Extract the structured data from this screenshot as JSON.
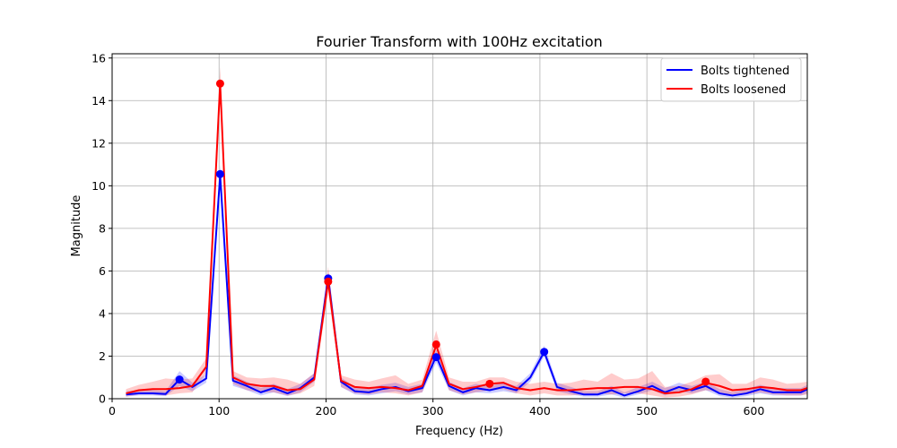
{
  "chart_data": {
    "type": "line",
    "title": "Fourier Transform with 100Hz excitation",
    "xlabel": "Frequency (Hz)",
    "ylabel": "Magnitude",
    "xlim": [
      0,
      650
    ],
    "ylim": [
      0,
      16.2
    ],
    "xticks": [
      0,
      100,
      200,
      300,
      400,
      500,
      600
    ],
    "yticks": [
      0,
      2,
      4,
      6,
      8,
      10,
      12,
      14,
      16
    ],
    "grid": true,
    "legend_position": "top-right",
    "x": [
      13,
      25,
      38,
      50,
      63,
      75,
      88,
      101,
      113,
      126,
      139,
      151,
      164,
      176,
      189,
      202,
      214,
      227,
      240,
      252,
      265,
      277,
      290,
      303,
      315,
      328,
      340,
      353,
      366,
      378,
      391,
      404,
      416,
      429,
      441,
      454,
      467,
      479,
      492,
      505,
      517,
      530,
      542,
      555,
      568,
      580,
      593,
      606,
      618,
      631,
      644,
      650
    ],
    "series": [
      {
        "name": "Bolts tightened",
        "color": "#0000ff",
        "values": [
          0.2,
          0.25,
          0.25,
          0.22,
          0.9,
          0.55,
          0.95,
          10.5,
          0.85,
          0.6,
          0.3,
          0.5,
          0.25,
          0.5,
          1.0,
          5.7,
          0.8,
          0.35,
          0.3,
          0.45,
          0.55,
          0.35,
          0.5,
          2.0,
          0.6,
          0.3,
          0.5,
          0.4,
          0.55,
          0.4,
          1.0,
          2.2,
          0.55,
          0.35,
          0.2,
          0.2,
          0.4,
          0.15,
          0.35,
          0.6,
          0.3,
          0.55,
          0.4,
          0.6,
          0.25,
          0.15,
          0.25,
          0.45,
          0.3,
          0.3,
          0.3,
          0.45
        ],
        "lower": [
          0.1,
          0.15,
          0.15,
          0.12,
          0.6,
          0.35,
          0.75,
          10.0,
          0.6,
          0.4,
          0.15,
          0.3,
          0.12,
          0.3,
          0.8,
          5.3,
          0.55,
          0.2,
          0.15,
          0.25,
          0.35,
          0.2,
          0.3,
          1.7,
          0.4,
          0.15,
          0.3,
          0.25,
          0.35,
          0.25,
          0.8,
          2.0,
          0.35,
          0.2,
          0.1,
          0.1,
          0.2,
          0.05,
          0.2,
          0.4,
          0.15,
          0.35,
          0.25,
          0.4,
          0.12,
          0.05,
          0.12,
          0.25,
          0.15,
          0.15,
          0.15,
          0.25
        ],
        "upper": [
          0.35,
          0.4,
          0.4,
          0.35,
          1.3,
          0.75,
          1.15,
          11.0,
          1.1,
          0.8,
          0.5,
          0.7,
          0.45,
          0.7,
          1.2,
          6.0,
          1.0,
          0.55,
          0.5,
          0.65,
          0.75,
          0.55,
          0.7,
          2.3,
          0.8,
          0.5,
          0.7,
          0.6,
          0.75,
          0.6,
          1.2,
          2.5,
          0.75,
          0.55,
          0.35,
          0.35,
          0.6,
          0.3,
          0.55,
          0.8,
          0.5,
          0.75,
          0.6,
          0.8,
          0.45,
          0.3,
          0.45,
          0.65,
          0.5,
          0.5,
          0.5,
          0.65
        ],
        "markers": [
          [
            63,
            0.9
          ],
          [
            101,
            10.55
          ],
          [
            202,
            5.65
          ],
          [
            303,
            1.95
          ],
          [
            404,
            2.2
          ]
        ]
      },
      {
        "name": "Bolts loosened",
        "color": "#ff0000",
        "values": [
          0.25,
          0.4,
          0.45,
          0.45,
          0.5,
          0.6,
          1.5,
          14.8,
          1.0,
          0.7,
          0.6,
          0.6,
          0.4,
          0.45,
          0.9,
          5.5,
          0.85,
          0.55,
          0.5,
          0.55,
          0.5,
          0.4,
          0.6,
          2.5,
          0.7,
          0.45,
          0.55,
          0.7,
          0.75,
          0.5,
          0.4,
          0.5,
          0.4,
          0.4,
          0.45,
          0.5,
          0.5,
          0.55,
          0.55,
          0.45,
          0.25,
          0.3,
          0.45,
          0.75,
          0.6,
          0.4,
          0.45,
          0.55,
          0.5,
          0.4,
          0.4,
          0.5
        ],
        "lower": [
          0.1,
          0.2,
          0.2,
          0.15,
          0.25,
          0.3,
          1.2,
          14.0,
          0.7,
          0.4,
          0.3,
          0.3,
          0.15,
          0.25,
          0.6,
          5.0,
          0.55,
          0.25,
          0.2,
          0.3,
          0.25,
          0.15,
          0.3,
          2.0,
          0.4,
          0.2,
          0.3,
          0.4,
          0.45,
          0.25,
          0.15,
          0.25,
          0.15,
          0.15,
          0.2,
          0.25,
          0.2,
          0.25,
          0.25,
          0.15,
          0.05,
          0.1,
          0.2,
          0.4,
          0.3,
          0.15,
          0.2,
          0.3,
          0.2,
          0.15,
          0.15,
          0.2
        ],
        "upper": [
          0.45,
          0.65,
          0.8,
          0.95,
          0.9,
          0.95,
          1.9,
          15.6,
          1.3,
          1.0,
          0.95,
          1.0,
          0.9,
          0.7,
          1.2,
          6.2,
          1.1,
          0.9,
          0.8,
          0.95,
          1.1,
          0.7,
          0.9,
          3.2,
          1.0,
          0.8,
          0.8,
          1.0,
          1.0,
          0.8,
          0.7,
          0.8,
          0.7,
          0.75,
          0.9,
          0.8,
          1.2,
          0.9,
          0.95,
          1.3,
          0.55,
          0.6,
          0.8,
          1.1,
          1.15,
          0.7,
          0.7,
          1.0,
          0.9,
          0.7,
          0.75,
          0.8
        ],
        "markers": [
          [
            101,
            14.8
          ],
          [
            202,
            5.5
          ],
          [
            303,
            2.55
          ],
          [
            353,
            0.7
          ],
          [
            555,
            0.8
          ]
        ]
      }
    ]
  }
}
